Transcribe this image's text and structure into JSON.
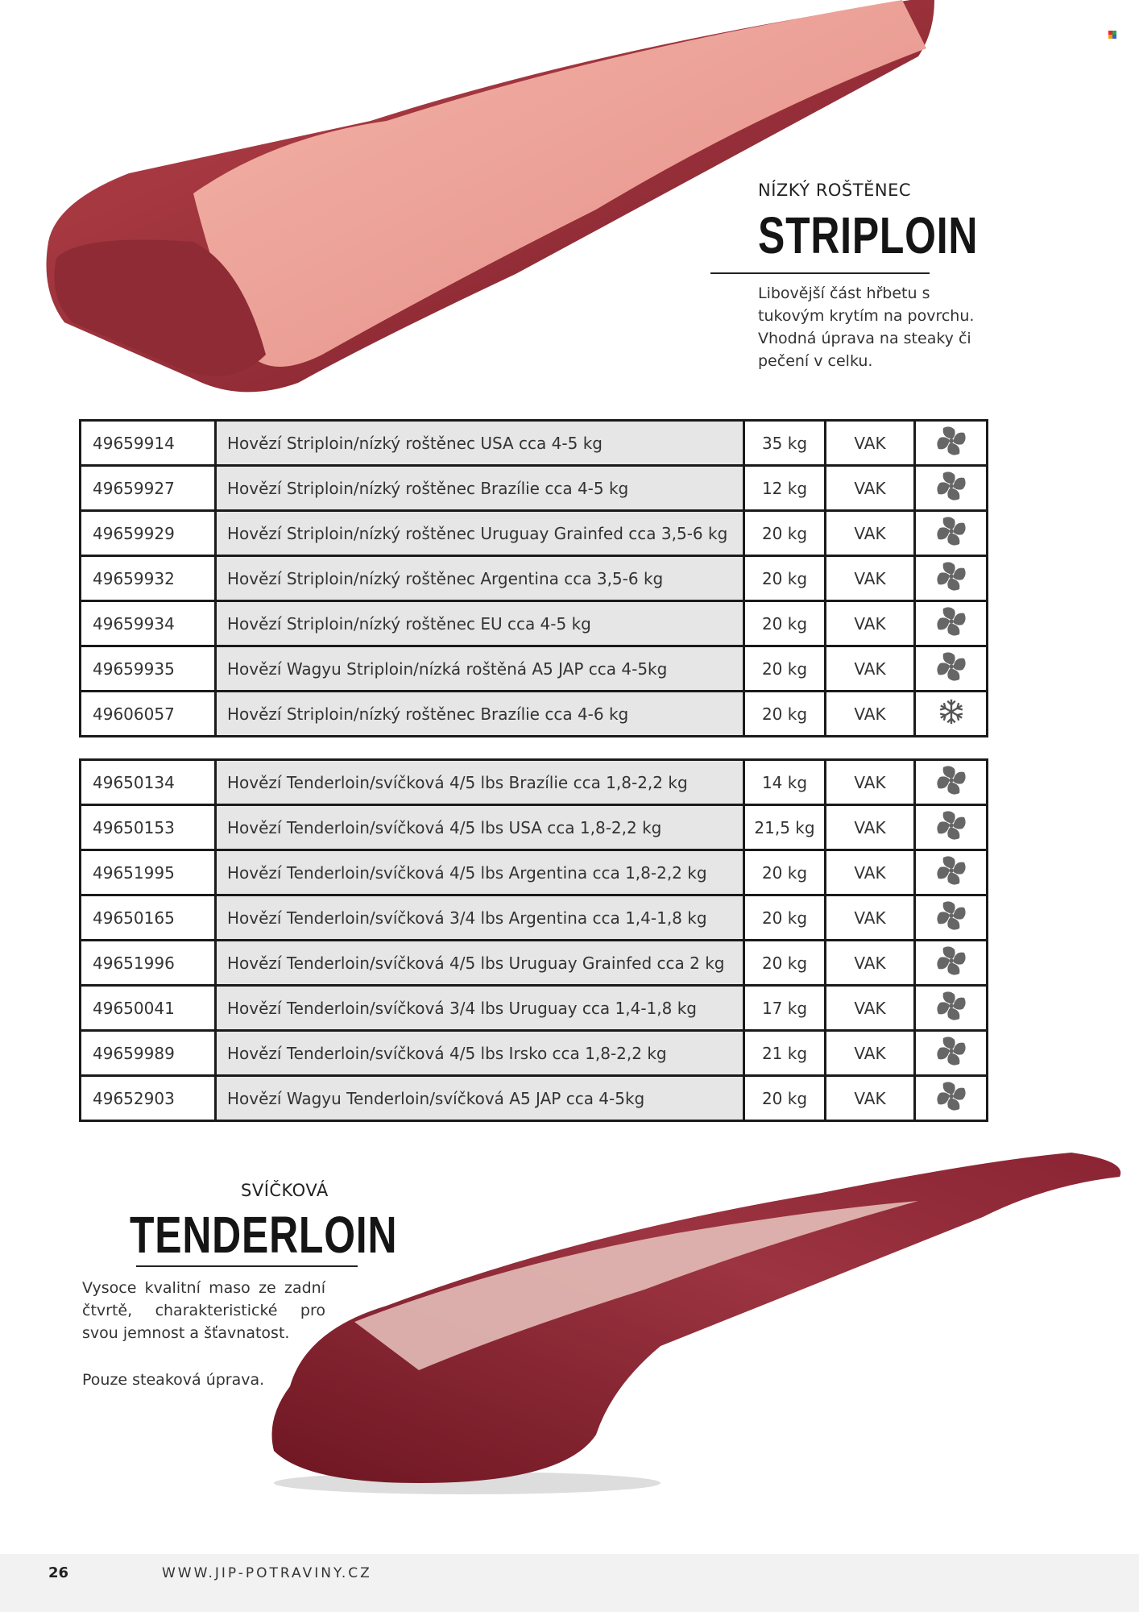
{
  "striploin": {
    "subtitle": "NÍZKÝ ROŠTĚNEC",
    "title": "STRIPLOIN",
    "description": "Libovější část hřbetu s tukovým krytím na povrchu. Vhodná úprava na steaky či pečení v celku."
  },
  "striploin_rows": [
    {
      "code": "49659914",
      "name": "Hovězí Striploin/nízký roštěnec USA cca 4-5 kg",
      "weight": "35 kg",
      "pack": "VAK",
      "icon": "fan-icon"
    },
    {
      "code": "49659927",
      "name": "Hovězí Striploin/nízký roštěnec Brazílie cca 4-5 kg",
      "weight": "12 kg",
      "pack": "VAK",
      "icon": "fan-icon"
    },
    {
      "code": "49659929",
      "name": "Hovězí Striploin/nízký roštěnec Uruguay Grainfed cca 3,5-6 kg",
      "weight": "20 kg",
      "pack": "VAK",
      "icon": "fan-icon"
    },
    {
      "code": "49659932",
      "name": "Hovězí Striploin/nízký roštěnec Argentina cca 3,5-6 kg",
      "weight": "20 kg",
      "pack": "VAK",
      "icon": "fan-icon"
    },
    {
      "code": "49659934",
      "name": "Hovězí Striploin/nízký roštěnec EU cca 4-5 kg",
      "weight": "20 kg",
      "pack": "VAK",
      "icon": "fan-icon"
    },
    {
      "code": "49659935",
      "name": "Hovězí Wagyu Striploin/nízká roštěná A5 JAP cca 4-5kg",
      "weight": "20 kg",
      "pack": "VAK",
      "icon": "fan-icon"
    },
    {
      "code": "49606057",
      "name": "Hovězí Striploin/nízký roštěnec Brazílie cca 4-6 kg",
      "weight": "20 kg",
      "pack": "VAK",
      "icon": "snowflake-icon"
    }
  ],
  "tenderloin_rows": [
    {
      "code": "49650134",
      "name": "Hovězí Tenderloin/svíčková 4/5 lbs Brazílie cca 1,8-2,2 kg",
      "weight": "14 kg",
      "pack": "VAK",
      "icon": "fan-icon"
    },
    {
      "code": "49650153",
      "name": "Hovězí Tenderloin/svíčková 4/5 lbs USA cca 1,8-2,2 kg",
      "weight": "21,5 kg",
      "pack": "VAK",
      "icon": "fan-icon"
    },
    {
      "code": "49651995",
      "name": "Hovězí Tenderloin/svíčková 4/5 lbs Argentina cca 1,8-2,2 kg",
      "weight": "20 kg",
      "pack": "VAK",
      "icon": "fan-icon"
    },
    {
      "code": "49650165",
      "name": "Hovězí Tenderloin/svíčková 3/4 lbs  Argentina cca 1,4-1,8 kg",
      "weight": "20 kg",
      "pack": "VAK",
      "icon": "fan-icon"
    },
    {
      "code": "49651996",
      "name": "Hovězí Tenderloin/svíčková 4/5 lbs Uruguay Grainfed cca 2 kg",
      "weight": "20 kg",
      "pack": "VAK",
      "icon": "fan-icon"
    },
    {
      "code": "49650041",
      "name": "Hovězí Tenderloin/svíčková 3/4 lbs Uruguay cca 1,4-1,8 kg",
      "weight": "17 kg",
      "pack": "VAK",
      "icon": "fan-icon"
    },
    {
      "code": "49659989",
      "name": "Hovězí Tenderloin/svíčková 4/5 lbs Irsko cca 1,8-2,2 kg",
      "weight": "21 kg",
      "pack": "VAK",
      "icon": "fan-icon"
    },
    {
      "code": "49652903",
      "name": "Hovězí Wagyu Tenderloin/svíčková A5 JAP cca 4-5kg",
      "weight": "20 kg",
      "pack": "VAK",
      "icon": "fan-icon"
    }
  ],
  "tenderloin": {
    "subtitle": "SVÍČKOVÁ",
    "title": "TENDERLOIN",
    "description": "Vysoce kvalitní maso ze zadní čtvrtě, charakteristické pro svou jemnost a šťavnatost.",
    "note": "Pouze steaková úprava."
  },
  "footer": {
    "page_number": "26",
    "website": "WWW.JIP-POTRAVINY.CZ"
  },
  "colors": {
    "table_border": "#1a1a1a",
    "name_cell_bg": "#e6e6e6",
    "icon_gray": "#666666",
    "footer_bg": "#f2f2f2"
  }
}
